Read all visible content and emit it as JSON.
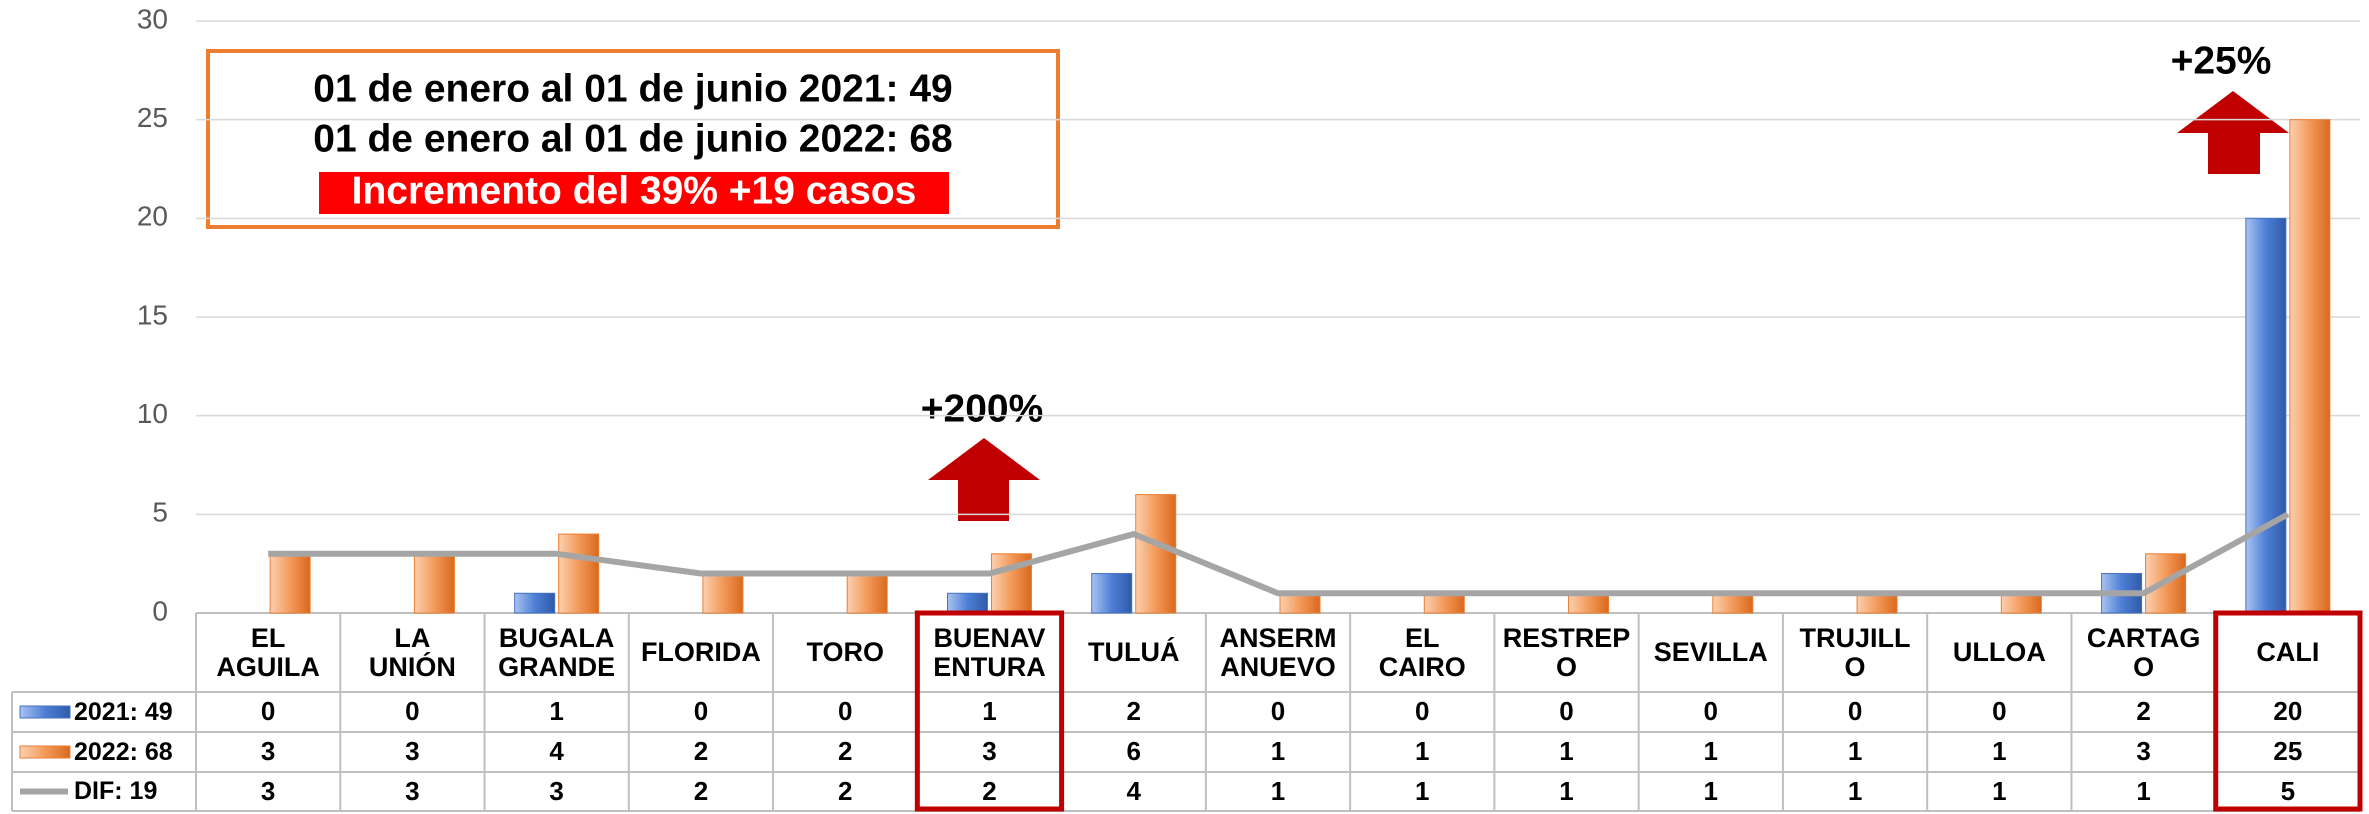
{
  "chart_data": {
    "type": "bar",
    "categories": [
      "EL\nAGUILA",
      "LA\nUNIÓN",
      "BUGALA\nGRANDE",
      "FLORIDA",
      "TORO",
      "BUENAV\nENTURA",
      "TULUÁ",
      "ANSERM\nANUEVO",
      "EL\nCAIRO",
      "RESTREP\nO",
      "SEVILLA",
      "TRUJILL\nO",
      "ULLOA",
      "CARTAG\nO",
      "CALI"
    ],
    "series": [
      {
        "name": "2021: 49",
        "color": "#4472c4",
        "values": [
          0,
          0,
          1,
          0,
          0,
          1,
          2,
          0,
          0,
          0,
          0,
          0,
          0,
          2,
          20
        ]
      },
      {
        "name": "2022: 68",
        "color": "#ed7d31",
        "values": [
          3,
          3,
          4,
          2,
          2,
          3,
          6,
          1,
          1,
          1,
          1,
          1,
          1,
          3,
          25
        ]
      },
      {
        "name": "DIF: 19",
        "color": "#a5a5a5",
        "type": "line",
        "values": [
          3,
          3,
          3,
          2,
          2,
          2,
          4,
          1,
          1,
          1,
          1,
          1,
          1,
          1,
          5
        ]
      }
    ],
    "ylim": [
      0,
      30
    ],
    "yticks": [
      0,
      5,
      10,
      15,
      20,
      25,
      30
    ],
    "grid": true,
    "annotations": {
      "box": [
        "01 de enero al 01 de junio 2021: 49",
        "01 de enero al 01 de junio 2022: 68",
        "Incremento del 39%  +19 casos"
      ],
      "buenaventura": "+200%",
      "cali": "+25%"
    }
  }
}
